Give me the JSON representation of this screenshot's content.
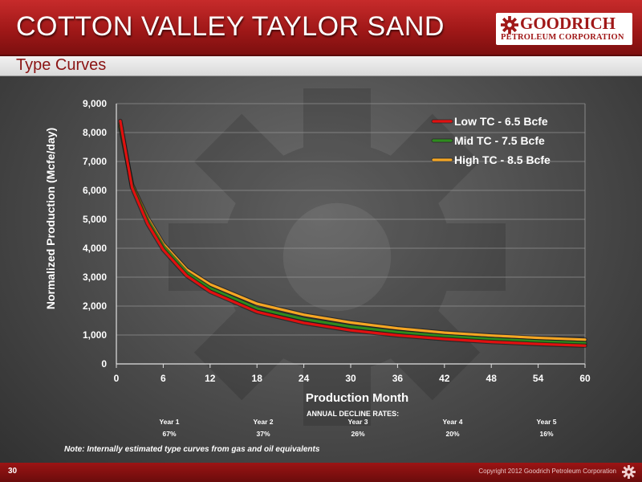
{
  "header": {
    "title": "COTTON VALLEY TAYLOR SAND",
    "subtitle": "Type Curves",
    "logo_name": "GOODRICH",
    "logo_sub": "PETROLEUM CORPORATION"
  },
  "chart_data": {
    "type": "line",
    "xlabel": "Production Month",
    "ylabel": "Normalized Production (Mcfe/day)",
    "xlim": [
      0,
      60
    ],
    "ylim": [
      0,
      9000
    ],
    "x_ticks": [
      0,
      6,
      12,
      18,
      24,
      30,
      36,
      42,
      48,
      54,
      60
    ],
    "y_ticks": [
      0,
      1000,
      2000,
      3000,
      4000,
      5000,
      6000,
      7000,
      8000,
      9000
    ],
    "y_tick_labels": [
      "0",
      "1,000",
      "2,000",
      "3,000",
      "4,000",
      "5,000",
      "6,000",
      "7,000",
      "8,000",
      "9,000"
    ],
    "grid": "horizontal",
    "legend_position": "top-right",
    "x": [
      0.5,
      2,
      4,
      6,
      9,
      12,
      18,
      24,
      30,
      36,
      42,
      48,
      54,
      60
    ],
    "series": [
      {
        "name": "Low TC - 6.5 Bcfe",
        "color": "#e01010",
        "values": [
          8400,
          6100,
          4850,
          3950,
          3050,
          2500,
          1800,
          1420,
          1160,
          990,
          860,
          760,
          690,
          630
        ]
      },
      {
        "name": "Mid TC - 7.5 Bcfe",
        "color": "#2e8b1e",
        "values": [
          8300,
          6150,
          4950,
          4050,
          3150,
          2620,
          1920,
          1550,
          1290,
          1100,
          960,
          860,
          780,
          720
        ]
      },
      {
        "name": "High TC - 8.5 Bcfe",
        "color": "#f5a623",
        "values": [
          8200,
          6200,
          5050,
          4150,
          3260,
          2750,
          2080,
          1700,
          1430,
          1230,
          1080,
          980,
          900,
          840
        ]
      }
    ]
  },
  "decline": {
    "title": "ANNUAL DECLINE RATES:",
    "years": [
      {
        "label": "Year 1",
        "rate": "67%"
      },
      {
        "label": "Year 2",
        "rate": "37%"
      },
      {
        "label": "Year 3",
        "rate": "26%"
      },
      {
        "label": "Year 4",
        "rate": "20%"
      },
      {
        "label": "Year 5",
        "rate": "16%"
      }
    ]
  },
  "note": "Note: Internally estimated type curves from gas and oil equivalents",
  "footer": {
    "page_number": "30",
    "copyright": "Copyright 2012 Goodrich Petroleum Corporation"
  }
}
